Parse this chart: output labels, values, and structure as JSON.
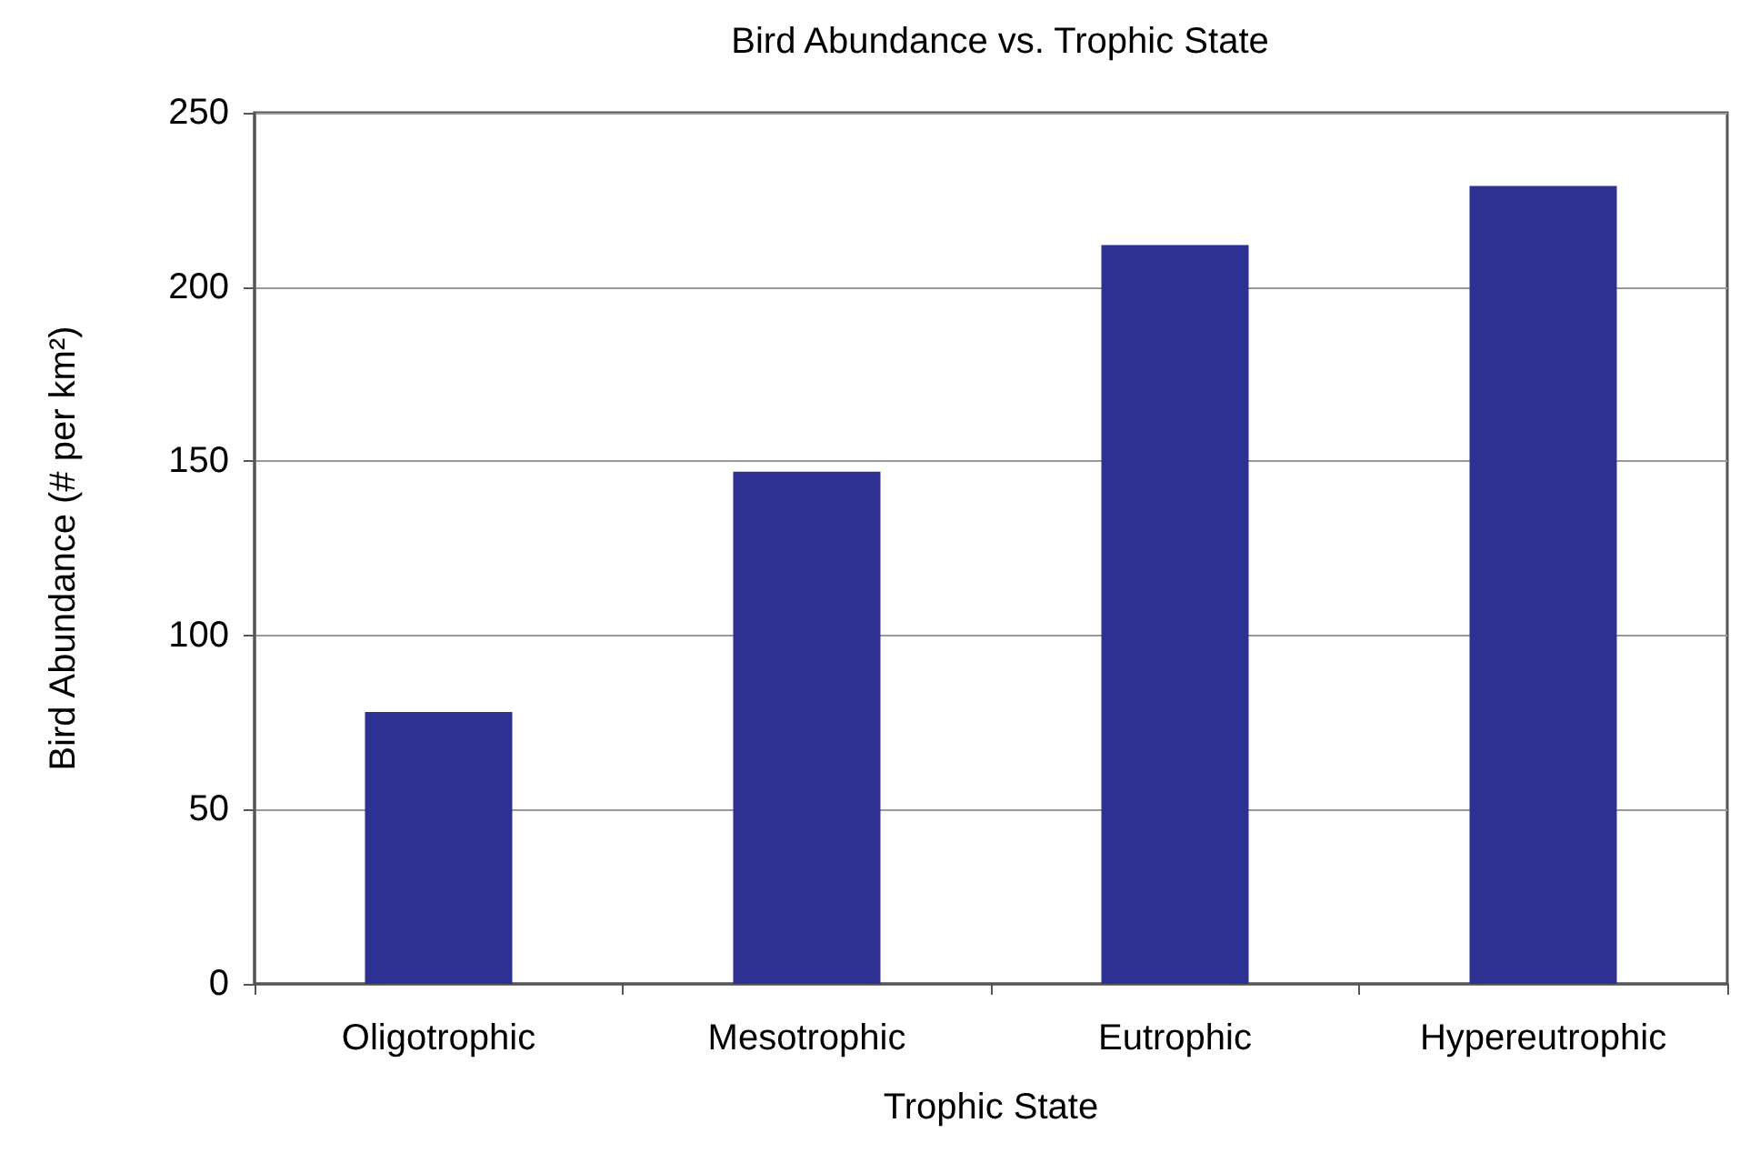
{
  "chart_data": {
    "type": "bar",
    "title": "Bird Abundance vs. Trophic State",
    "xlabel": "Trophic State",
    "ylabel": "Bird Abundance (# per km²)",
    "categories": [
      "Oligotrophic",
      "Mesotrophic",
      "Eutrophic",
      "Hypereutrophic"
    ],
    "values": [
      78,
      147,
      212,
      229
    ],
    "color": "#2e3192",
    "ylim": [
      0,
      250
    ],
    "yticks": [
      0,
      50,
      100,
      150,
      200,
      250
    ],
    "grid": "y"
  }
}
